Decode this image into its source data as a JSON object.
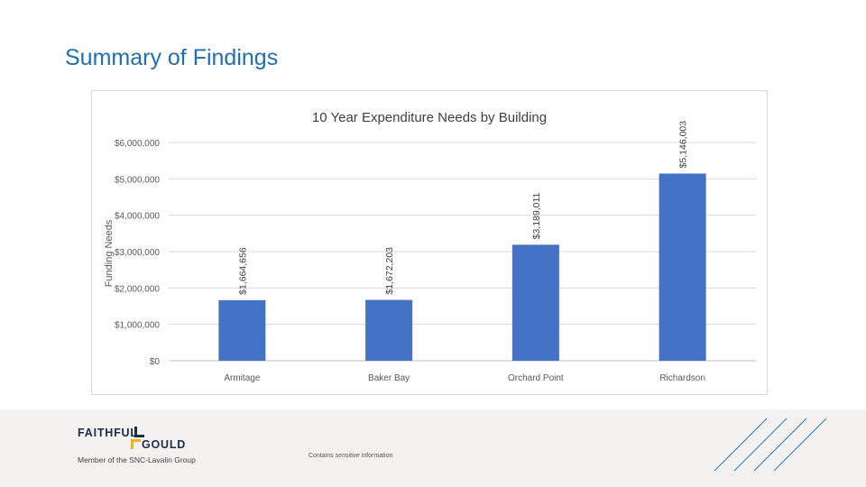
{
  "slide": {
    "title": "Summary of Findings"
  },
  "footer": {
    "logo_line1": "FAITHFUL",
    "logo_line2": "GOULD",
    "member_text": "Member of the SNC-Lavalin Group",
    "note_prefix": "Contains ",
    "note_emphasis": "sensitive",
    "note_suffix": " information"
  },
  "colors": {
    "bar": "#4472c4",
    "title": "#1f6fb2",
    "logo_accent": "#f2b21b",
    "logo_navy": "#1c2b4a",
    "stripes": "#2e7bbf"
  },
  "icons": {
    "logo_mark": "faithful-gould-logo-icon",
    "stripes": "diagonal-stripes-icon"
  },
  "chart_data": {
    "type": "bar",
    "title": "10 Year Expenditure Needs by Building",
    "xlabel": "",
    "ylabel": "Funding Needs",
    "categories": [
      "Armitage",
      "Baker Bay",
      "Orchard Point",
      "Richardson"
    ],
    "values": [
      1664656,
      1672203,
      3189011,
      5146003
    ],
    "data_labels": [
      "$1,664,656",
      "$1,672,203",
      "$3,189,011",
      "$5,146,003"
    ],
    "ylim": [
      0,
      6000000
    ],
    "yticks": [
      0,
      1000000,
      2000000,
      3000000,
      4000000,
      5000000,
      6000000
    ],
    "ytick_labels": [
      "$0",
      "$1,000,000",
      "$2,000,000",
      "$3,000,000",
      "$4,000,000",
      "$5,000,000",
      "$6,000,000"
    ],
    "grid": true,
    "legend": "none"
  }
}
